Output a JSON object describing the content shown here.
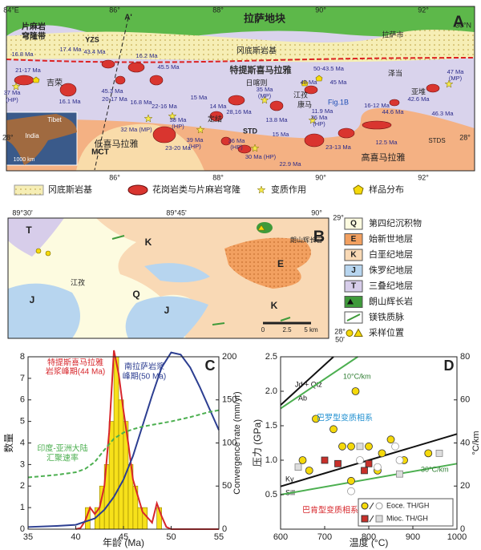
{
  "panel_a": {
    "labels": [
      "84°E",
      "86°",
      "A'",
      "88°",
      "90°",
      "92°",
      "30°N",
      "28°",
      "28°",
      "86°",
      "88°",
      "90°",
      "92°",
      "A",
      "拉萨地块",
      "片麻岩",
      "穹隆带",
      "YZS",
      "冈底斯岩基",
      "拉萨市",
      "特提斯喜马拉雅",
      "吉荣",
      "日喀则",
      "江孜",
      "康马",
      "Fig.1B",
      "泽当",
      "亚堆",
      "定结",
      "STD",
      "STDS",
      "MCT",
      "低喜马拉雅",
      "高喜马拉雅",
      "Tibet",
      "India",
      "1000 km"
    ],
    "ages": [
      "16.8 Ma",
      "17.4 Ma",
      "43.4 Ma",
      "16.2 Ma",
      "45.5 Ma",
      "21-17 Ma",
      "37 Ma",
      "(HP)",
      "16.1 Ma",
      "45.3 Ma",
      "20-17 Ma",
      "16.8 Ma",
      "22-16 Ma",
      "15 Ma",
      "14 Ma",
      "28,16 Ma",
      "35 Ma",
      "(MP)",
      "50-43.5 Ma",
      "48 Ma",
      "45 Ma",
      "11.9 Ma",
      "13.8 Ma",
      "16-12 Ma",
      "47 Ma",
      "(MP)",
      "42.6 Ma",
      "44.6 Ma",
      "46.3 Ma",
      "36 Ma",
      "(HP)",
      "32 Ma (MP)",
      "38 Ma",
      "(HP)",
      "39 Ma",
      "(HP)",
      "23-20 Ma",
      "36 Ma",
      "(HP)",
      "30 Ma (HP)",
      "15 Ma",
      "23-13 Ma",
      "12.5 Ma",
      "22.9 Ma"
    ],
    "legend": [
      "冈底斯岩基",
      "花岗岩类与片麻岩穹隆",
      "变质作用",
      "样品分布"
    ]
  },
  "panel_b": {
    "labels": [
      "89°30'",
      "89°45'",
      "90°",
      "29°",
      "28°",
      "50'",
      "B",
      "T",
      "K",
      "E",
      "K",
      "J",
      "J",
      "Q",
      "江孜",
      "朗山辉长岩",
      "0",
      "2.5",
      "5 km"
    ],
    "legend": [
      {
        "symbol": "Q",
        "label": "第四纪沉积物",
        "color": "#fdfbe0"
      },
      {
        "symbol": "E",
        "label": "始新世地层",
        "color": "#f2a060"
      },
      {
        "symbol": "K",
        "label": "白垩纪地层",
        "color": "#f9d9b5"
      },
      {
        "symbol": "J",
        "label": "侏罗纪地层",
        "color": "#b7d5ef"
      },
      {
        "symbol": "T",
        "label": "三叠纪地层",
        "color": "#d7cdea"
      },
      {
        "label": "朗山辉长岩",
        "color": "#3f9a3a"
      },
      {
        "label": "镁铁质脉",
        "color": "#3f9a3a"
      },
      {
        "label": "采样位置",
        "color": "#f5d90a"
      }
    ]
  },
  "chart_data": [
    {
      "type": "histogram",
      "panel_label": "C",
      "bins": [
        41,
        41.5,
        42,
        42.5,
        43,
        43.5,
        44,
        44.5,
        45,
        45.5,
        46,
        46.5,
        47,
        47.5,
        48,
        48.5,
        49
      ],
      "counts": [
        1,
        0,
        1,
        2,
        3,
        5,
        8,
        6,
        5,
        3,
        2,
        1,
        1,
        0,
        0,
        1
      ],
      "color": "#f7e11a",
      "xlim": [
        35,
        55
      ],
      "xticks": [
        35,
        40,
        45,
        50,
        55
      ],
      "ylim": [
        0,
        8
      ],
      "yticks": [
        0,
        1,
        2,
        3,
        4,
        5,
        6,
        7,
        8
      ],
      "y2lim": [
        0,
        200
      ],
      "y2ticks": [
        0,
        50,
        100,
        150,
        200
      ],
      "xlabel": "年龄 (Ma)",
      "ylabel": "数量",
      "y2label": "Convergence rate (mm/yr)",
      "series": [
        {
          "color": "#d7262b",
          "style": "solid",
          "x": [
            40,
            40.5,
            41,
            41.5,
            42,
            42.5,
            43,
            43.5,
            44,
            44.5,
            45,
            45.5,
            46,
            47,
            48,
            48.5,
            49,
            49.5,
            50,
            52,
            55
          ],
          "values": [
            0,
            0.05,
            0.4,
            1.0,
            0.7,
            1.0,
            2.0,
            4.5,
            8.3,
            7.2,
            5.5,
            4.0,
            2.3,
            0.8,
            0.3,
            1.2,
            0.6,
            0.1,
            0,
            0,
            0
          ]
        },
        {
          "color": "#2c3e91",
          "style": "solid",
          "x": [
            35,
            38,
            40,
            42,
            43,
            44,
            45,
            46,
            47,
            48,
            49,
            50,
            51,
            52,
            53,
            54,
            55
          ],
          "values": [
            0.1,
            0.15,
            0.2,
            0.5,
            0.9,
            1.5,
            2.3,
            3.4,
            4.8,
            6.2,
            7.5,
            8.2,
            8.1,
            7.5,
            6.6,
            5.6,
            4.6
          ]
        },
        {
          "color": "#4caf50",
          "style": "dashed",
          "axis": "y2",
          "x": [
            35,
            38,
            40,
            41,
            42,
            43,
            44,
            45,
            46,
            47,
            48,
            50,
            52,
            54,
            55
          ],
          "values": [
            60,
            63,
            66,
            70,
            78,
            92,
            105,
            112,
            116,
            119,
            121,
            125,
            130,
            136,
            138
          ]
        }
      ],
      "annotations": [
        "特提斯喜马拉雅",
        "岩浆峰期(44 Ma)",
        "南拉萨岩浆",
        "峰期(50 Ma)",
        "印度-亚洲大陆",
        "汇聚速率"
      ]
    },
    {
      "type": "scatter",
      "panel_label": "D",
      "xlim": [
        600,
        1000
      ],
      "xticks": [
        600,
        700,
        800,
        900,
        1000
      ],
      "ylim": [
        0,
        2.5
      ],
      "yticks": [
        0.5,
        {
          "value": 1,
          "label": "1.0"
        },
        1.5,
        {
          "value": 2,
          "label": "2.0"
        },
        2.5
      ],
      "y2lim": [
        0,
        80
      ],
      "y2ticks": [
        0,
        20,
        40,
        60,
        80
      ],
      "xlabel": "温度 (°C)",
      "ylabel": "压力 (GPa)",
      "y2label": "°C/km",
      "series": [
        {
          "name": "Eoce. TH/GH",
          "marker": "circle",
          "color": "#f5d90a",
          "open_color": "#999999",
          "x": [
            770,
            680,
            720,
            850,
            740,
            760,
            800,
            830,
            650,
            665,
            760,
            935,
            880,
            820,
            860,
            780,
            760,
            820,
            870
          ],
          "values": [
            2.0,
            1.6,
            1.45,
            1.3,
            1.2,
            1.2,
            1.2,
            1.1,
            1.0,
            0.85,
            0.7,
            1.1,
            1.0,
            0.85,
            1.2,
            1.0,
            0.55,
            0.9,
            1.0
          ],
          "filled": [
            true,
            true,
            true,
            true,
            true,
            true,
            true,
            true,
            true,
            true,
            true,
            true,
            true,
            true,
            false,
            false,
            false,
            false,
            false
          ]
        },
        {
          "name": "Mioc. TH/GH",
          "marker": "square",
          "color": "#c8302a",
          "open_color": "#888888",
          "x": [
            700,
            730,
            800,
            790,
            780,
            640,
            960,
            870
          ],
          "values": [
            1.0,
            0.95,
            0.95,
            0.85,
            1.2,
            0.9,
            1.1,
            0.8
          ],
          "filled": [
            true,
            true,
            true,
            true,
            false,
            false,
            false,
            false
          ]
        }
      ],
      "reference_lines": [
        {
          "labels": [
            "Jd + Qtz",
            "Ab"
          ],
          "color": "#111111",
          "x": [
            600,
            720
          ],
          "y": [
            1.8,
            2.5
          ]
        },
        {
          "labels": [
            "10°C/km"
          ],
          "color": "#4caf50",
          "x": [
            600,
            775
          ],
          "y": [
            1.75,
            2.5
          ]
        },
        {
          "labels": [
            "Ky",
            "Sill"
          ],
          "color": "#111111",
          "x": [
            600,
            1000
          ],
          "y": [
            0.62,
            1.38
          ]
        },
        {
          "labels": [
            "30°C/km"
          ],
          "color": "#4caf50",
          "x": [
            600,
            1000
          ],
          "y": [
            0.5,
            0.95
          ]
        }
      ],
      "annotations": [
        "巴罗型变质相系",
        "巴肯型变质相系"
      ]
    }
  ]
}
